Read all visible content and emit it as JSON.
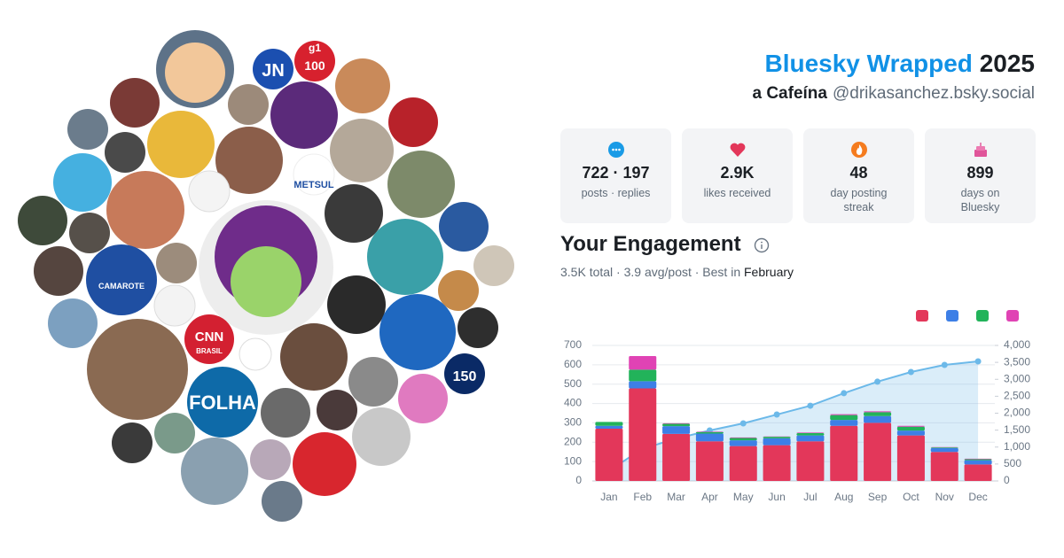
{
  "header": {
    "title_brand": "Bluesky Wrapped",
    "title_year": "2025",
    "display_name": "a Cafeína",
    "handle": "@drikasanchez.bsky.social"
  },
  "stats": [
    {
      "value": "722 · 197",
      "label": "posts · replies"
    },
    {
      "value": "2.9K",
      "label": "likes received"
    },
    {
      "value": "48",
      "label": "day posting streak"
    },
    {
      "value": "899",
      "label": "days on Bluesky"
    }
  ],
  "engagement": {
    "title": "Your Engagement",
    "summary": "3.5K total · 3.9 avg/post · Best in",
    "best_month": "February"
  },
  "avatars": {
    "logos": [
      "JN",
      "g1",
      "100",
      "METSUL",
      "CAMAROTE",
      "CNN",
      "BRASIL",
      "FOLHA",
      "150"
    ]
  },
  "chart_data": {
    "type": "bar",
    "stacked": true,
    "categories": [
      "Jan",
      "Feb",
      "Mar",
      "Apr",
      "May",
      "Jun",
      "Jul",
      "Aug",
      "Sep",
      "Oct",
      "Nov",
      "Dec"
    ],
    "series": [
      {
        "color": "#e3375a",
        "values": [
          270,
          478,
          243,
          205,
          180,
          185,
          205,
          285,
          300,
          235,
          150,
          85
        ]
      },
      {
        "color": "#3d7fe6",
        "values": [
          15,
          37,
          40,
          40,
          30,
          35,
          30,
          30,
          35,
          25,
          20,
          22
        ]
      },
      {
        "color": "#22b35a",
        "values": [
          20,
          60,
          12,
          8,
          12,
          8,
          12,
          25,
          20,
          20,
          3,
          5
        ]
      },
      {
        "color": "#e043b4",
        "values": [
          0,
          70,
          3,
          2,
          3,
          2,
          3,
          5,
          5,
          5,
          2,
          3
        ]
      },
      {
        "color": "#6cb9e9",
        "axis": "y2",
        "values": [
          305,
          950,
          1250,
          1490,
          1700,
          1960,
          2220,
          2590,
          2930,
          3215,
          3425,
          3530
        ]
      }
    ],
    "ylim": [
      0,
      700
    ],
    "yticks": [
      0,
      100,
      200,
      300,
      400,
      500,
      600,
      700
    ],
    "y2lim": [
      0,
      4000
    ],
    "y2ticks": [
      0,
      500,
      {
        "value": 1000,
        "label": "1,000"
      },
      {
        "value": 1500,
        "label": "1,500"
      },
      {
        "value": 2000,
        "label": "2,000"
      },
      {
        "value": 2500,
        "label": "2,500"
      },
      {
        "value": 3000,
        "label": "3,000"
      },
      {
        "value": 3500,
        "label": "3,500"
      },
      {
        "value": 4000,
        "label": "4,000"
      }
    ],
    "grid": true,
    "legend": "top-right"
  }
}
